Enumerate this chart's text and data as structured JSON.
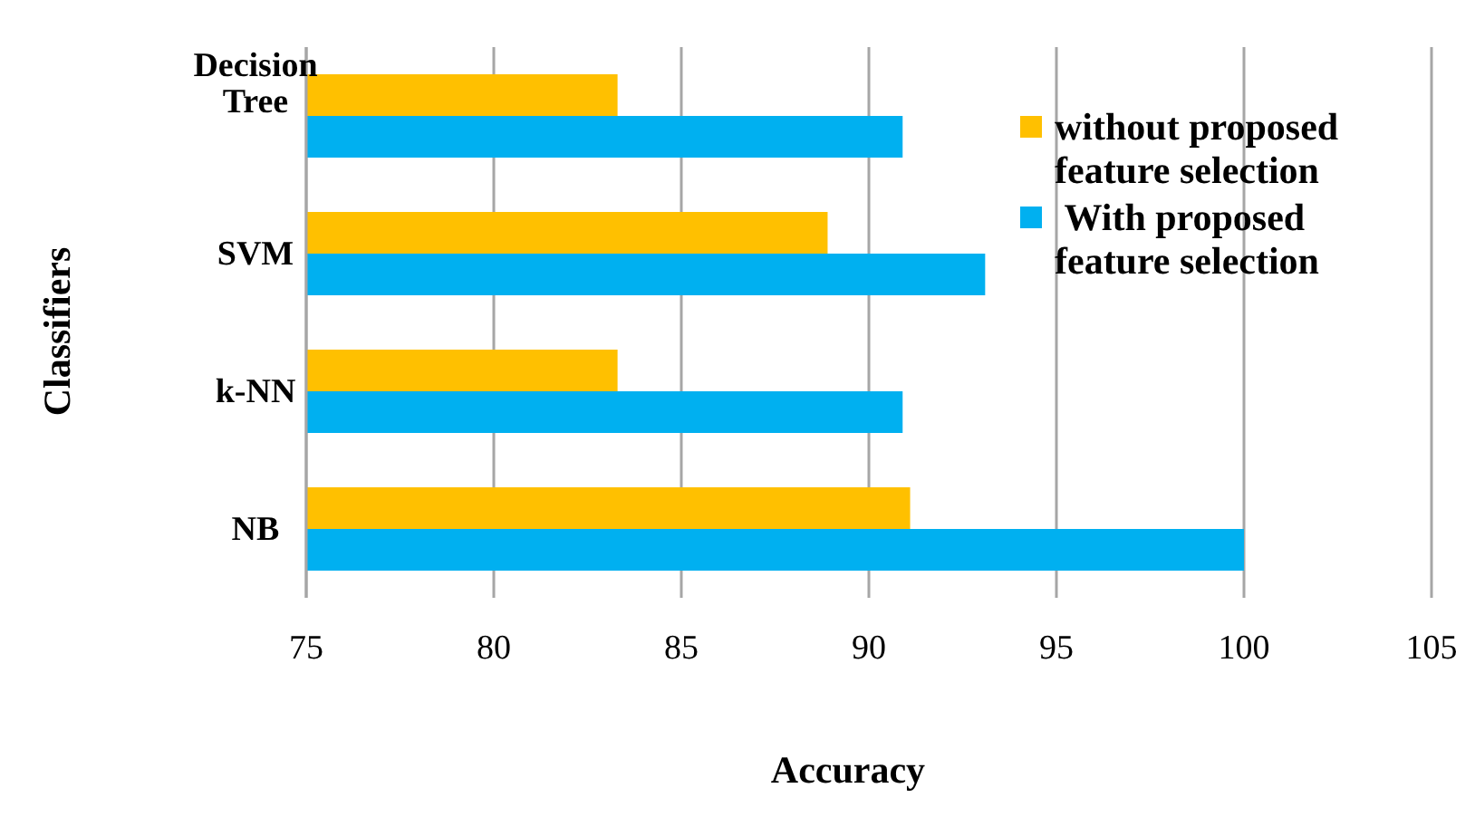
{
  "chart_data": {
    "type": "bar",
    "orientation": "horizontal",
    "xlabel": "Accuracy",
    "ylabel": "Classifiers",
    "categories": [
      "Decision Tree",
      "SVM",
      "k-NN",
      "NB"
    ],
    "series": [
      {
        "name": "without proposed feature selection",
        "color": "#ffc000",
        "values": [
          83.3,
          88.9,
          83.3,
          91.1
        ]
      },
      {
        "name": " With proposed feature selection",
        "color": "#00b0f0",
        "values": [
          90.9,
          93.1,
          90.9,
          100
        ]
      }
    ],
    "xlim": [
      75,
      105
    ],
    "xticks": [
      75,
      80,
      85,
      90,
      95,
      100,
      105
    ],
    "grid": "x",
    "legend": "right"
  }
}
